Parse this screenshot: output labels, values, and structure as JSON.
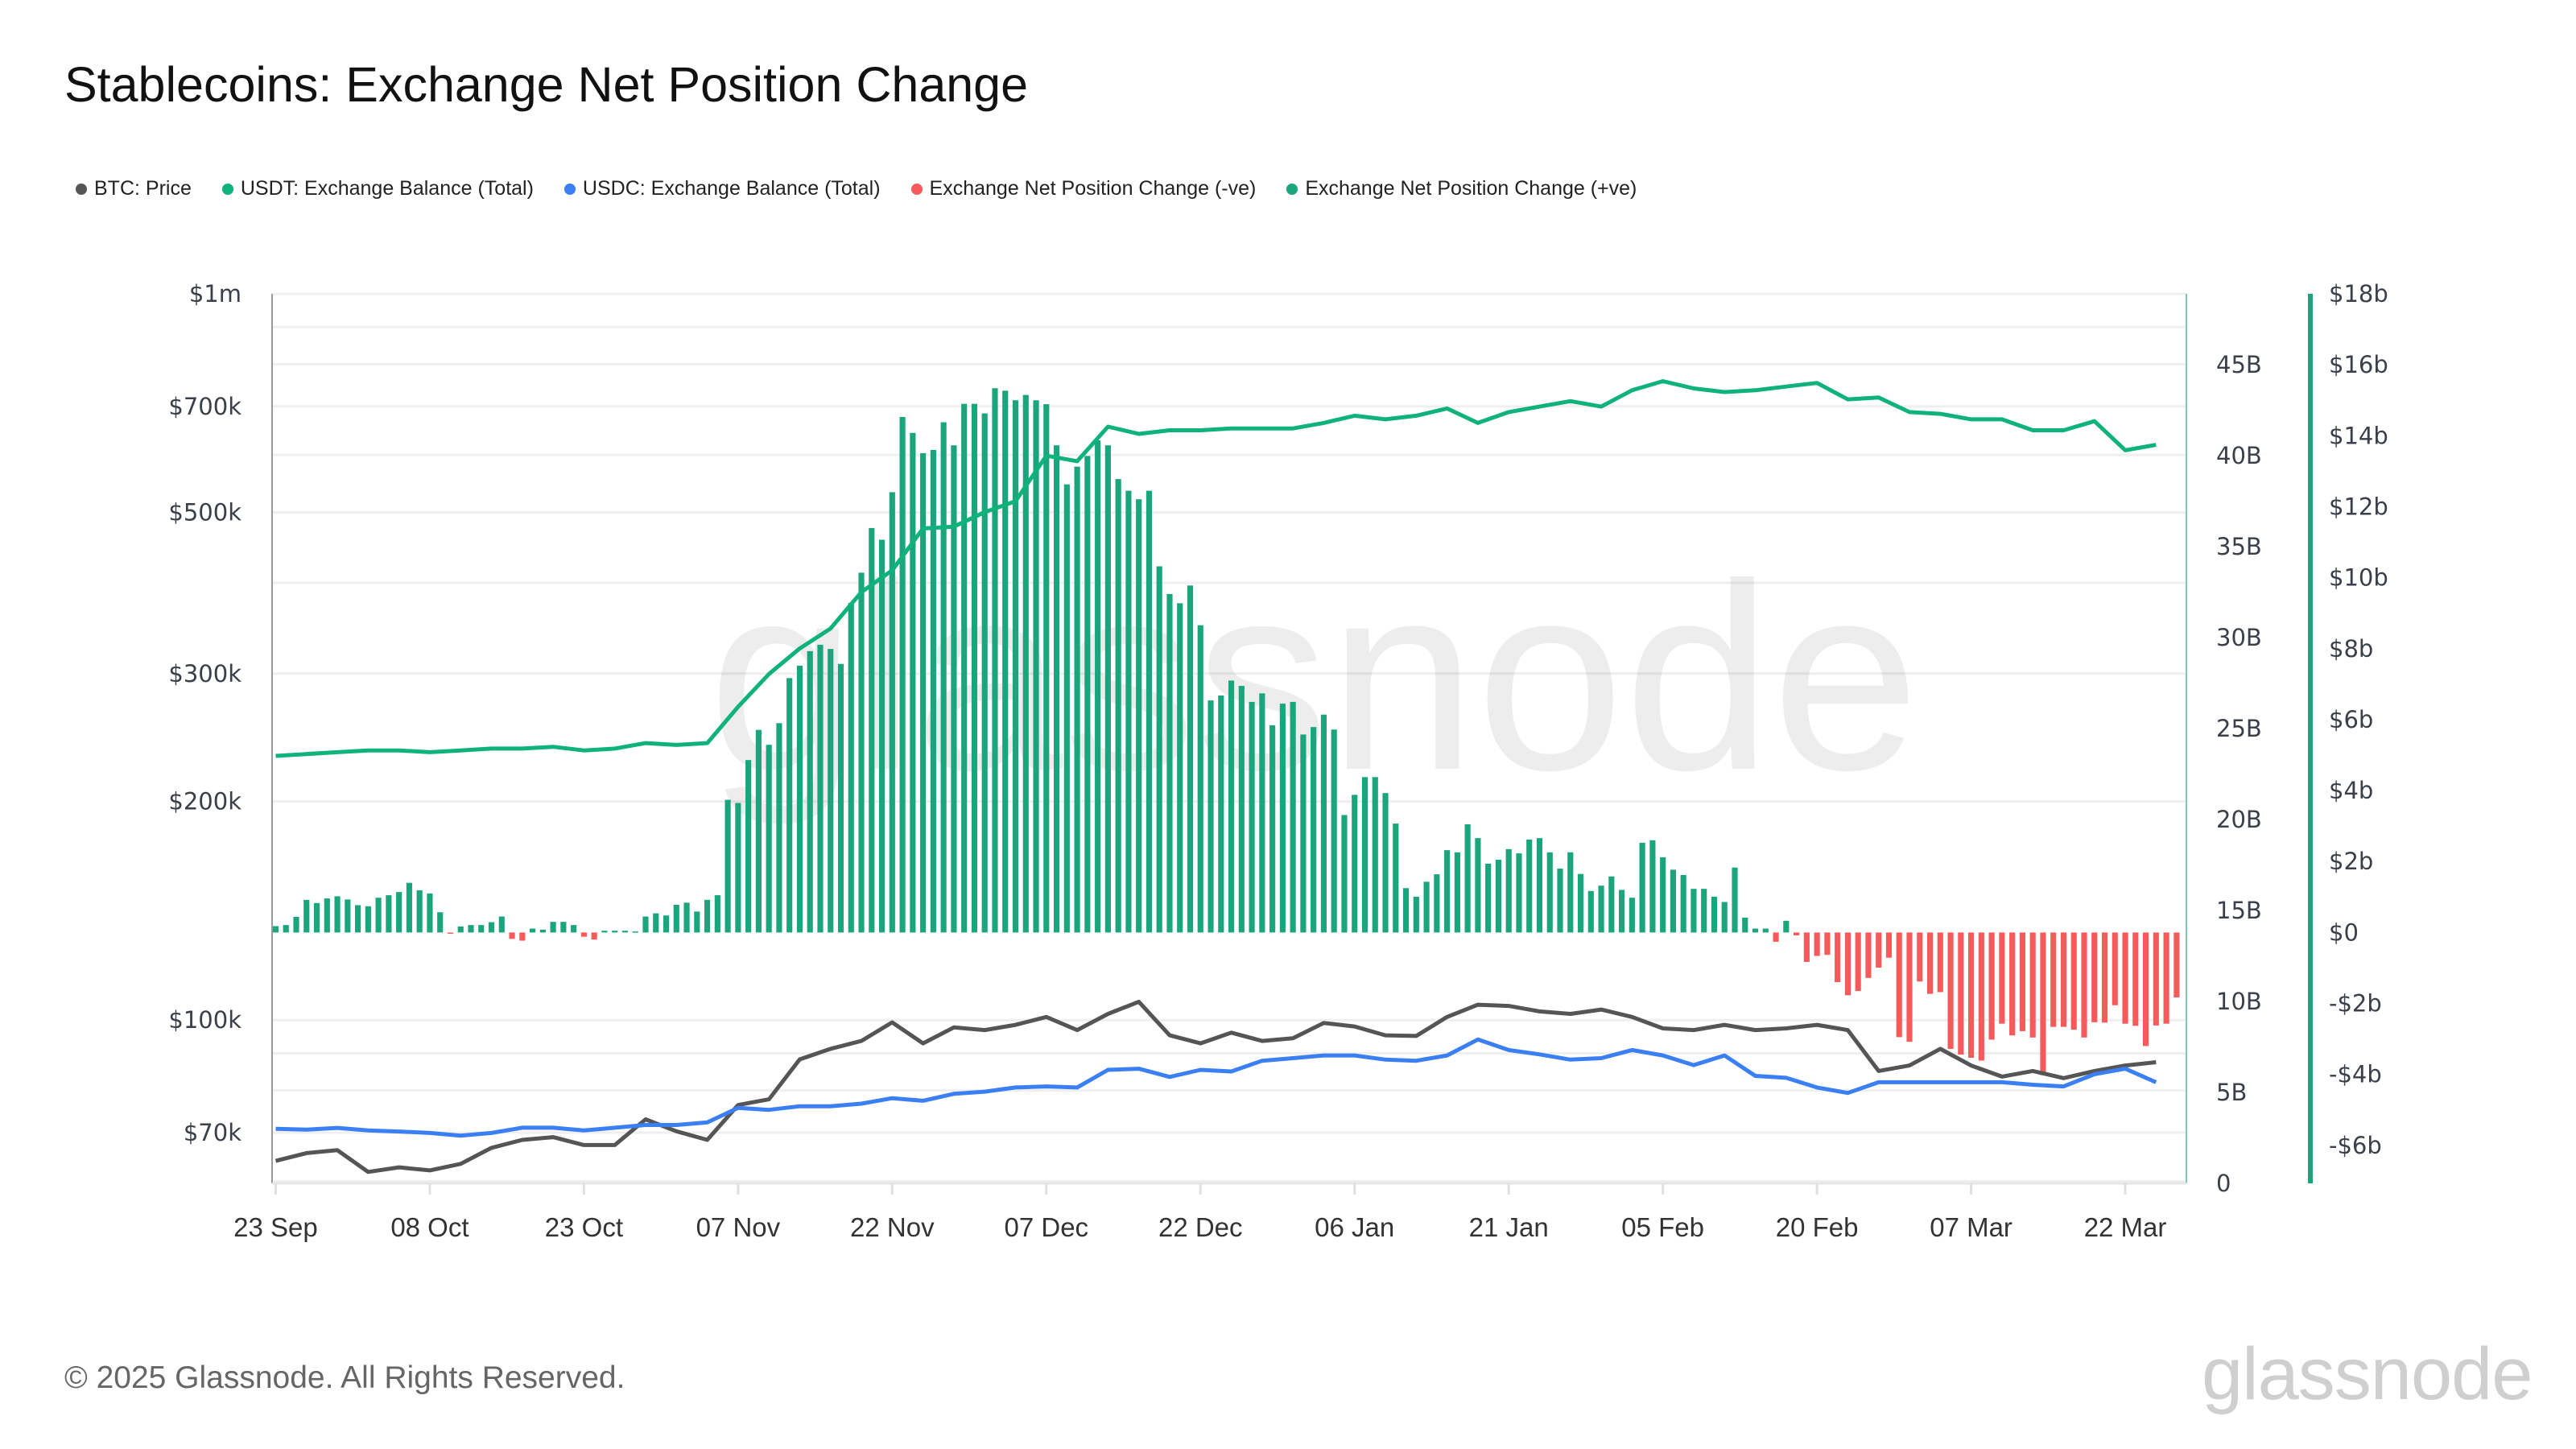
{
  "title": "Stablecoins: Exchange Net Position Change",
  "legend": [
    {
      "label": "BTC: Price",
      "color": "#555555"
    },
    {
      "label": "USDT: Exchange Balance (Total)",
      "color": "#10b27c"
    },
    {
      "label": "USDC: Exchange Balance (Total)",
      "color": "#3b7ff5"
    },
    {
      "label": "Exchange Net Position Change (-ve)",
      "color": "#f75a5a"
    },
    {
      "label": "Exchange Net Position Change (+ve)",
      "color": "#1aa57d"
    }
  ],
  "footer": {
    "copyright": "© 2025 Glassnode. All Rights Reserved.",
    "logo": "glassnode",
    "watermark": "glassnode"
  },
  "chart_data": {
    "type": "bar+line",
    "title": "Stablecoins: Exchange Net Position Change",
    "x_ticks": [
      "23 Sep",
      "08 Oct",
      "23 Oct",
      "07 Nov",
      "22 Nov",
      "07 Dec",
      "22 Dec",
      "06 Jan",
      "21 Jan",
      "05 Feb",
      "20 Feb",
      "07 Mar",
      "22 Mar"
    ],
    "grid": true,
    "legend_position": "top-left",
    "axes": {
      "left": {
        "scale": "log",
        "ylim": [
          59600,
          1000000
        ],
        "ticks": [
          {
            "v": 1000000,
            "label": "$1m"
          },
          {
            "v": 700000,
            "label": "$700k"
          },
          {
            "v": 500000,
            "label": "$500k"
          },
          {
            "v": 300000,
            "label": "$300k"
          },
          {
            "v": 200000,
            "label": "$200k"
          },
          {
            "v": 100000,
            "label": "$100k"
          },
          {
            "v": 70000,
            "label": "$70k"
          }
        ],
        "gridlines": [
          60000,
          70000,
          80000,
          90000,
          100000,
          200000,
          300000,
          400000,
          500000,
          600000,
          700000,
          800000,
          900000,
          1000000
        ]
      },
      "middle": {
        "scale": "linear",
        "ylim": [
          0,
          48.9
        ],
        "ticks": [
          {
            "v": 45,
            "label": "45B"
          },
          {
            "v": 40,
            "label": "40B"
          },
          {
            "v": 35,
            "label": "35B"
          },
          {
            "v": 30,
            "label": "30B"
          },
          {
            "v": 25,
            "label": "25B"
          },
          {
            "v": 20,
            "label": "20B"
          },
          {
            "v": 15,
            "label": "15B"
          },
          {
            "v": 10,
            "label": "10B"
          },
          {
            "v": 5,
            "label": "5B"
          },
          {
            "v": 0,
            "label": "0"
          }
        ],
        "color": "#1aa57d"
      },
      "right": {
        "scale": "linear",
        "ylim": [
          -7.07,
          18
        ],
        "ticks": [
          {
            "v": 18,
            "label": "$18b"
          },
          {
            "v": 16,
            "label": "$16b"
          },
          {
            "v": 14,
            "label": "$14b"
          },
          {
            "v": 12,
            "label": "$12b"
          },
          {
            "v": 10,
            "label": "$10b"
          },
          {
            "v": 8,
            "label": "$8b"
          },
          {
            "v": 6,
            "label": "$6b"
          },
          {
            "v": 4,
            "label": "$4b"
          },
          {
            "v": 2,
            "label": "$2b"
          },
          {
            "v": 0,
            "label": "$0"
          },
          {
            "v": -2,
            "label": "-$2b"
          },
          {
            "v": -4,
            "label": "-$4b"
          },
          {
            "v": -6,
            "label": "-$6b"
          }
        ],
        "color": "#1aa57d"
      }
    },
    "line_dates": [
      "23 Sep",
      "26 Sep",
      "29 Sep",
      "02 Oct",
      "05 Oct",
      "08 Oct",
      "11 Oct",
      "14 Oct",
      "17 Oct",
      "20 Oct",
      "23 Oct",
      "26 Oct",
      "29 Oct",
      "01 Nov",
      "04 Nov",
      "07 Nov",
      "10 Nov",
      "13 Nov",
      "16 Nov",
      "19 Nov",
      "22 Nov",
      "25 Nov",
      "28 Nov",
      "01 Dec",
      "04 Dec",
      "07 Dec",
      "10 Dec",
      "13 Dec",
      "16 Dec",
      "19 Dec",
      "22 Dec",
      "25 Dec",
      "28 Dec",
      "31 Dec",
      "03 Jan",
      "06 Jan",
      "09 Jan",
      "12 Jan",
      "15 Jan",
      "18 Jan",
      "21 Jan",
      "24 Jan",
      "27 Jan",
      "30 Jan",
      "02 Feb",
      "05 Feb",
      "08 Feb",
      "11 Feb",
      "14 Feb",
      "17 Feb",
      "20 Feb",
      "23 Feb",
      "26 Feb",
      "01 Mar",
      "04 Mar",
      "07 Mar",
      "10 Mar",
      "13 Mar",
      "16 Mar",
      "19 Mar",
      "22 Mar",
      "25 Mar"
    ],
    "series": [
      {
        "name": "BTC: Price",
        "axis": "left",
        "kind": "line",
        "color": "#555555",
        "values": [
          64000,
          65600,
          66200,
          61800,
          62700,
          62100,
          63400,
          66700,
          68400,
          69000,
          67300,
          67300,
          73000,
          70300,
          68400,
          76400,
          77800,
          88300,
          91300,
          93600,
          99300,
          92900,
          97700,
          96900,
          98500,
          101000,
          96900,
          102000,
          106000,
          95300,
          92900,
          96100,
          93600,
          94400,
          99100,
          98000,
          95300,
          95100,
          101000,
          105000,
          104600,
          102800,
          102000,
          103400,
          101000,
          97400,
          96900,
          98500,
          96900,
          97400,
          98500,
          96900,
          85100,
          86600,
          91300,
          86600,
          83600,
          85100,
          83200,
          85100,
          86600,
          87500
        ]
      },
      {
        "name": "USDT: Exchange Balance (Total)",
        "axis": "middle",
        "kind": "line",
        "color": "#10b27c",
        "values": [
          23.5,
          23.6,
          23.7,
          23.8,
          23.8,
          23.7,
          23.8,
          23.9,
          23.9,
          24.0,
          23.8,
          23.9,
          24.2,
          24.1,
          24.2,
          26.2,
          28.0,
          29.4,
          30.5,
          32.5,
          33.7,
          36.0,
          36.1,
          36.9,
          37.5,
          40.0,
          39.7,
          41.6,
          41.2,
          41.4,
          41.4,
          41.5,
          41.5,
          41.5,
          41.8,
          42.2,
          42.0,
          42.2,
          42.6,
          41.8,
          42.4,
          42.7,
          43.0,
          42.7,
          43.6,
          44.1,
          43.7,
          43.5,
          43.6,
          43.8,
          44.0,
          43.1,
          43.2,
          42.4,
          42.3,
          42.0,
          42.0,
          41.4,
          41.4,
          41.9,
          40.3,
          40.6
        ]
      },
      {
        "name": "USDC: Exchange Balance (Total)",
        "axis": "middle",
        "kind": "line",
        "color": "#3b7ff5",
        "values": [
          3.0,
          2.95,
          3.05,
          2.91,
          2.85,
          2.77,
          2.62,
          2.77,
          3.06,
          3.06,
          2.91,
          3.06,
          3.21,
          3.21,
          3.35,
          4.15,
          4.04,
          4.24,
          4.24,
          4.38,
          4.68,
          4.54,
          4.92,
          5.04,
          5.27,
          5.33,
          5.27,
          6.24,
          6.3,
          5.85,
          6.24,
          6.15,
          6.74,
          6.88,
          7.03,
          7.03,
          6.8,
          6.74,
          7.03,
          7.91,
          7.33,
          7.09,
          6.8,
          6.88,
          7.33,
          7.03,
          6.5,
          7.03,
          5.91,
          5.8,
          5.27,
          4.97,
          5.56,
          5.56,
          5.56,
          5.56,
          5.56,
          5.42,
          5.33,
          6.0,
          6.3,
          5.56
        ]
      },
      {
        "name": "Exchange Net Position Change",
        "axis": "right",
        "kind": "bar",
        "start": "23 Sep",
        "pos_color": "#1aa57d",
        "neg_color": "#f75a5a",
        "values": [
          0.18,
          0.21,
          0.44,
          0.92,
          0.83,
          0.96,
          1.02,
          0.93,
          0.77,
          0.74,
          0.98,
          1.05,
          1.14,
          1.4,
          1.19,
          1.1,
          0.57,
          -0.02,
          0.17,
          0.21,
          0.21,
          0.29,
          0.45,
          -0.18,
          -0.23,
          0.11,
          0.08,
          0.3,
          0.3,
          0.21,
          -0.12,
          -0.2,
          0.05,
          0.05,
          0.05,
          0.03,
          0.45,
          0.54,
          0.48,
          0.78,
          0.84,
          0.59,
          0.92,
          1.05,
          3.74,
          3.65,
          4.86,
          5.71,
          5.29,
          5.9,
          7.17,
          7.52,
          7.93,
          8.11,
          7.99,
          7.57,
          9.29,
          10.14,
          11.4,
          11.07,
          12.41,
          14.53,
          14.08,
          13.51,
          13.6,
          14.38,
          13.73,
          14.9,
          14.9,
          14.63,
          15.34,
          15.27,
          15.0,
          15.15,
          15.0,
          14.89,
          13.73,
          12.63,
          13.13,
          13.43,
          13.87,
          13.73,
          12.78,
          12.45,
          12.21,
          12.45,
          10.32,
          9.54,
          9.28,
          9.78,
          8.66,
          6.54,
          6.68,
          7.1,
          6.95,
          6.5,
          6.74,
          5.84,
          6.45,
          6.5,
          5.58,
          5.79,
          6.14,
          5.72,
          3.31,
          3.88,
          4.38,
          4.38,
          3.93,
          3.07,
          1.25,
          1.01,
          1.43,
          1.64,
          2.32,
          2.26,
          3.05,
          2.66,
          1.94,
          2.05,
          2.35,
          2.23,
          2.62,
          2.66,
          2.26,
          1.8,
          2.26,
          1.65,
          1.17,
          1.32,
          1.58,
          1.2,
          0.98,
          2.53,
          2.6,
          2.12,
          1.77,
          1.62,
          1.23,
          1.23,
          1.01,
          0.86,
          1.83,
          0.42,
          0.11,
          0.11,
          -0.26,
          0.33,
          -0.08,
          -0.83,
          -0.66,
          -0.63,
          -1.4,
          -1.77,
          -1.65,
          -1.28,
          -0.99,
          -0.71,
          -2.95,
          -3.08,
          -1.38,
          -1.73,
          -1.68,
          -3.28,
          -3.44,
          -3.53,
          -3.61,
          -3.02,
          -2.57,
          -2.9,
          -2.78,
          -2.96,
          -4.02,
          -2.66,
          -2.66,
          -2.74,
          -2.96,
          -2.53,
          -2.54,
          -2.05,
          -2.57,
          -2.63,
          -3.2,
          -2.62,
          -2.57,
          -1.83
        ]
      }
    ]
  }
}
